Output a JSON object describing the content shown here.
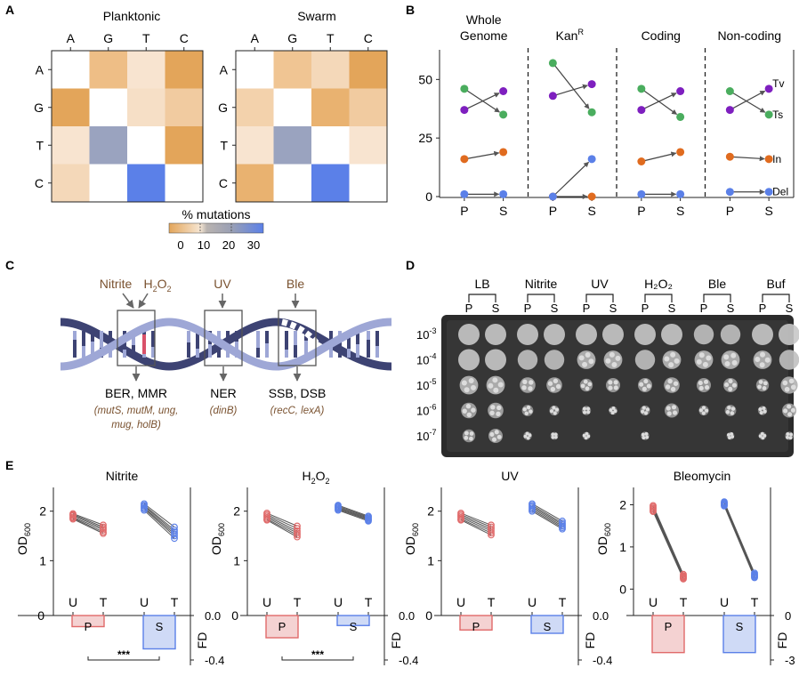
{
  "panel_letters": [
    "A",
    "B",
    "C",
    "D",
    "E"
  ],
  "colors": {
    "purine_tv": "#7e1fbf",
    "ts_green": "#4aad5e",
    "ins_orange": "#e06b1f",
    "del_blue": "#5b80e8",
    "planktonic_red": "#e06a6a",
    "swarm_blue": "#5b80e8",
    "heat_low": "#e3a55a",
    "heat_mid": "#9aa0b4",
    "heat_high": "#5b80e8",
    "helix_dark": "#3d4373",
    "helix_light": "#9ea7d6",
    "arrow_gray": "#666666",
    "stress_brown": "#7a5230",
    "plate_bg": "#2a2a2a"
  },
  "panelA": {
    "bases": [
      "A",
      "G",
      "T",
      "C"
    ],
    "titles": [
      "Planktonic",
      "Swarm"
    ],
    "legend_title": "% mutations",
    "legend_ticks": [
      "0",
      "10",
      "20",
      "30"
    ],
    "chart_data": [
      {
        "type": "heatmap",
        "title": "Planktonic",
        "x": [
          "A",
          "G",
          "T",
          "C"
        ],
        "y": [
          "A",
          "G",
          "T",
          "C"
        ],
        "values": [
          [
            null,
            8,
            2,
            12
          ],
          [
            12,
            null,
            3,
            6
          ],
          [
            2,
            18,
            null,
            12
          ],
          [
            4,
            null,
            28,
            null
          ]
        ]
      },
      {
        "type": "heatmap",
        "title": "Swarm",
        "x": [
          "A",
          "G",
          "T",
          "C"
        ],
        "y": [
          "A",
          "G",
          "T",
          "C"
        ],
        "values": [
          [
            null,
            7,
            4,
            12
          ],
          [
            5,
            null,
            10,
            6
          ],
          [
            2,
            20,
            null,
            2
          ],
          [
            10,
            null,
            29,
            null
          ]
        ]
      }
    ]
  },
  "panelB": {
    "groups": [
      "Whole\nGenome",
      "Kan^R",
      "Coding",
      "Non-coding"
    ],
    "group_lines": [
      [
        "Whole",
        "Genome"
      ],
      [
        "Kan"
      ],
      [
        "Coding"
      ],
      [
        "Non-coding"
      ]
    ],
    "kan_superscript": "R",
    "xticks": [
      "P",
      "S"
    ],
    "yticks": [
      "0",
      "25",
      "50"
    ],
    "series_labels": [
      "Tv",
      "Ts",
      "In",
      "Del"
    ],
    "chart_data": {
      "type": "line",
      "ylim": [
        0,
        60
      ],
      "categories": [
        "P",
        "S"
      ],
      "panels": [
        {
          "name": "Whole Genome",
          "series": [
            {
              "name": "Tv",
              "values": [
                37,
                45
              ]
            },
            {
              "name": "Ts",
              "values": [
                46,
                35
              ]
            },
            {
              "name": "In",
              "values": [
                16,
                19
              ]
            },
            {
              "name": "Del",
              "values": [
                1,
                1
              ]
            }
          ]
        },
        {
          "name": "Kan^R",
          "series": [
            {
              "name": "Tv",
              "values": [
                43,
                48
              ]
            },
            {
              "name": "Ts",
              "values": [
                57,
                36
              ]
            },
            {
              "name": "In",
              "values": [
                0,
                0
              ]
            },
            {
              "name": "Del",
              "values": [
                0,
                16
              ]
            }
          ]
        },
        {
          "name": "Coding",
          "series": [
            {
              "name": "Tv",
              "values": [
                37,
                45
              ]
            },
            {
              "name": "Ts",
              "values": [
                46,
                34
              ]
            },
            {
              "name": "In",
              "values": [
                15,
                19
              ]
            },
            {
              "name": "Del",
              "values": [
                1,
                1
              ]
            }
          ]
        },
        {
          "name": "Non-coding",
          "series": [
            {
              "name": "Tv",
              "values": [
                37,
                46
              ]
            },
            {
              "name": "Ts",
              "values": [
                45,
                35
              ]
            },
            {
              "name": "In",
              "values": [
                17,
                16
              ]
            },
            {
              "name": "Del",
              "values": [
                2,
                2
              ]
            }
          ]
        }
      ]
    }
  },
  "panelC": {
    "stresses": [
      "Nitrite",
      "H2O2",
      "UV",
      "Ble"
    ],
    "h2o2_parts": [
      "H",
      "2",
      "O",
      "2"
    ],
    "repair": [
      {
        "name": "BER, MMR",
        "genes": [
          "(mutS, mutM, ung,",
          "mug, holB)"
        ]
      },
      {
        "name": "NER",
        "genes": [
          "(dinB)"
        ]
      },
      {
        "name": "SSB, DSB",
        "genes": [
          "(recC, lexA)"
        ]
      }
    ]
  },
  "panelD": {
    "conditions": [
      "LB",
      "Nitrite",
      "UV",
      "H₂O₂",
      "Ble",
      "Buf"
    ],
    "sublabels": [
      "P",
      "S"
    ],
    "dilutions": [
      {
        "base": "10",
        "exp": "-3"
      },
      {
        "base": "10",
        "exp": "-4"
      },
      {
        "base": "10",
        "exp": "-5"
      },
      {
        "base": "10",
        "exp": "-6"
      },
      {
        "base": "10",
        "exp": "-7"
      }
    ]
  },
  "panelE": {
    "ylabel": "OD",
    "ylabel_sub": "600",
    "fd_label": "FD",
    "xticks": [
      "U",
      "T",
      "U",
      "T"
    ],
    "bar_labels": [
      "P",
      "S"
    ],
    "sig": "***",
    "panels": [
      {
        "title": "Nitrite",
        "y_ticks": [
          "1",
          "2"
        ],
        "fd_ticks": [
          "0.0",
          "-0.4"
        ],
        "zero": "0",
        "sig": true,
        "chart_data": {
          "type": "scatter",
          "ylim": [
            0,
            2.3
          ],
          "P": {
            "U": [
              1.95,
              1.93,
              1.91,
              1.88,
              1.86,
              1.84
            ],
            "T": [
              1.72,
              1.68,
              1.65,
              1.62,
              1.58,
              1.55
            ]
          },
          "S": {
            "U": [
              2.15,
              2.12,
              2.1,
              2.07,
              2.05,
              2.02
            ],
            "T": [
              1.68,
              1.62,
              1.58,
              1.54,
              1.5,
              1.45
            ]
          },
          "fd": {
            "P": -0.1,
            "S": -0.3
          },
          "fd_range": [
            0,
            -0.4
          ]
        }
      },
      {
        "title": "H2O2",
        "y_ticks": [
          "1",
          "2"
        ],
        "fd_ticks": [
          "0.0",
          "-0.4"
        ],
        "zero": "0",
        "sig": true,
        "chart_data": {
          "type": "scatter",
          "ylim": [
            0,
            2.3
          ],
          "P": {
            "U": [
              1.96,
              1.93,
              1.9,
              1.87,
              1.84,
              1.82
            ],
            "T": [
              1.7,
              1.65,
              1.6,
              1.56,
              1.52,
              1.48
            ]
          },
          "S": {
            "U": [
              2.12,
              2.1,
              2.08,
              2.06,
              2.04,
              2.02
            ],
            "T": [
              1.9,
              1.88,
              1.86,
              1.84,
              1.82,
              1.8
            ]
          },
          "fd": {
            "P": -0.2,
            "S": -0.09
          },
          "fd_range": [
            0,
            -0.4
          ]
        }
      },
      {
        "title": "UV",
        "y_ticks": [
          "1",
          "2"
        ],
        "fd_ticks": [
          "0.0",
          "-0.4"
        ],
        "zero": "0",
        "sig": false,
        "chart_data": {
          "type": "scatter",
          "ylim": [
            0,
            2.3
          ],
          "P": {
            "U": [
              1.96,
              1.93,
              1.9,
              1.87,
              1.84,
              1.82
            ],
            "T": [
              1.72,
              1.68,
              1.64,
              1.6,
              1.56,
              1.52
            ]
          },
          "S": {
            "U": [
              2.15,
              2.12,
              2.09,
              2.06,
              2.03,
              2.0
            ],
            "T": [
              1.8,
              1.76,
              1.73,
              1.7,
              1.67,
              1.64
            ]
          },
          "fd": {
            "P": -0.13,
            "S": -0.16
          },
          "fd_range": [
            0,
            -0.4
          ]
        }
      },
      {
        "title": "Bleomycin",
        "y_ticks": [
          "0",
          "1",
          "2"
        ],
        "fd_ticks": [
          "0",
          "-3"
        ],
        "zero": "",
        "sig": false,
        "chart_data": {
          "type": "scatter",
          "ylim": [
            -0.5,
            2.2
          ],
          "P": {
            "U": [
              1.98,
              1.95,
              1.92,
              1.89,
              1.86,
              1.84
            ],
            "T": [
              0.35,
              0.32,
              0.3,
              0.28,
              0.26,
              0.24
            ]
          },
          "S": {
            "U": [
              2.07,
              2.05,
              2.03,
              2.01,
              1.99,
              1.97
            ],
            "T": [
              0.38,
              0.35,
              0.33,
              0.31,
              0.29,
              0.27
            ]
          },
          "fd": {
            "P": -2.5,
            "S": -2.5
          },
          "fd_range": [
            0,
            -3
          ]
        }
      }
    ]
  }
}
